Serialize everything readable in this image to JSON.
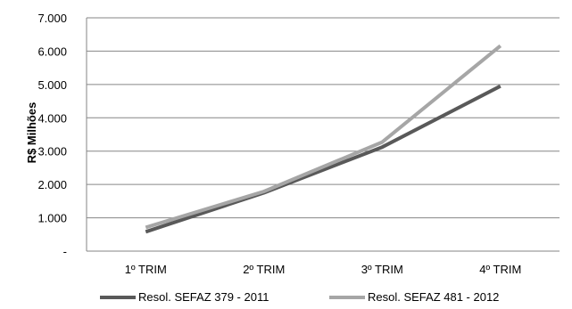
{
  "chart_data": {
    "type": "line",
    "categories": [
      "1º TRIM",
      "2º TRIM",
      "3º TRIM",
      "4º TRIM"
    ],
    "ylabel": "R$ Milhões",
    "ylim": [
      0,
      7000
    ],
    "yticks": [
      0,
      1000,
      2000,
      3000,
      4000,
      5000,
      6000,
      7000
    ],
    "ytick_labels": [
      "-",
      "1.000",
      "2.000",
      "3.000",
      "4.000",
      "5.000",
      "6.000",
      "7.000"
    ],
    "grid": true,
    "legend_position": "bottom",
    "series": [
      {
        "name": "Resol. SEFAZ 379 - 2011",
        "values": [
          580,
          1750,
          3120,
          4950
        ],
        "color": "#595959"
      },
      {
        "name": "Resol. SEFAZ 481 - 2012",
        "values": [
          710,
          1790,
          3270,
          6160
        ],
        "color": "#a6a6a6"
      }
    ]
  },
  "colors": {
    "gridline": "#868686",
    "axis": "#868686"
  }
}
